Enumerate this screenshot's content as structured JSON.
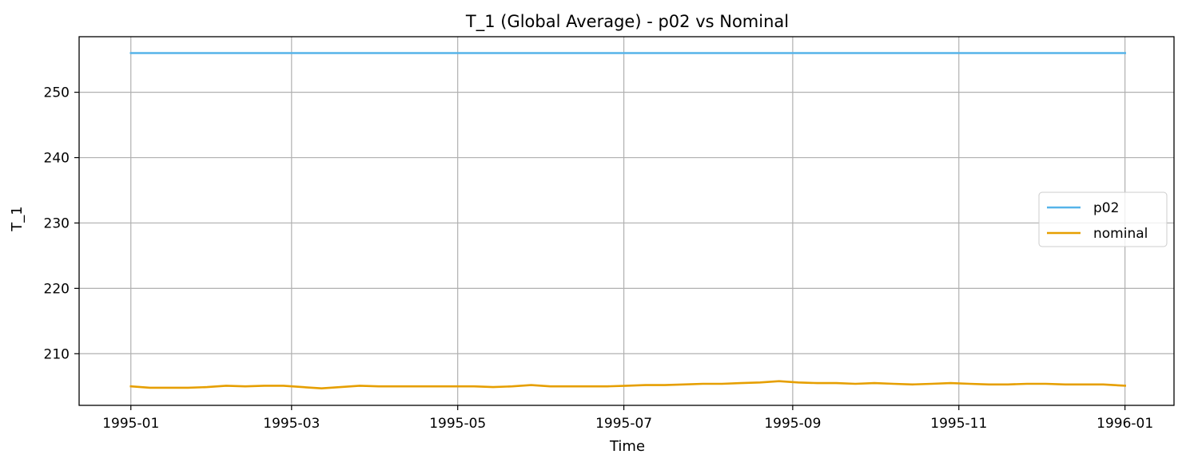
{
  "chart_data": {
    "type": "line",
    "title": "T_1 (Global Average) - p02 vs Nominal",
    "xlabel": "Time",
    "ylabel": "T_1",
    "grid": true,
    "legend_position": "center-right",
    "xlim": [
      "1994-12-13",
      "1996-01-19"
    ],
    "ylim": [
      202.1,
      258.5
    ],
    "x_ticks": [
      "1995-01-01",
      "1995-03-01",
      "1995-05-01",
      "1995-07-01",
      "1995-09-01",
      "1995-11-01",
      "1996-01-01"
    ],
    "x_tick_labels": [
      "1995-01",
      "1995-03",
      "1995-05",
      "1995-07",
      "1995-09",
      "1995-11",
      "1996-01"
    ],
    "y_ticks": [
      210,
      220,
      230,
      240,
      250
    ],
    "y_tick_labels": [
      "210",
      "220",
      "230",
      "240",
      "250"
    ],
    "series": [
      {
        "name": "p02",
        "color": "#56b4e9",
        "x": [
          "1995-01-01",
          "1996-01-01"
        ],
        "y": [
          256.0,
          256.0
        ]
      },
      {
        "name": "nominal",
        "color": "#e69f00",
        "x": [
          "1995-01-01",
          "1995-01-08",
          "1995-01-15",
          "1995-01-22",
          "1995-01-29",
          "1995-02-05",
          "1995-02-12",
          "1995-02-19",
          "1995-02-26",
          "1995-03-05",
          "1995-03-12",
          "1995-03-19",
          "1995-03-26",
          "1995-04-02",
          "1995-04-09",
          "1995-04-16",
          "1995-04-23",
          "1995-04-30",
          "1995-05-07",
          "1995-05-14",
          "1995-05-21",
          "1995-05-28",
          "1995-06-04",
          "1995-06-11",
          "1995-06-18",
          "1995-06-25",
          "1995-07-02",
          "1995-07-09",
          "1995-07-16",
          "1995-07-23",
          "1995-07-30",
          "1995-08-06",
          "1995-08-13",
          "1995-08-20",
          "1995-08-27",
          "1995-09-03",
          "1995-09-10",
          "1995-09-17",
          "1995-09-24",
          "1995-10-01",
          "1995-10-08",
          "1995-10-15",
          "1995-10-22",
          "1995-10-29",
          "1995-11-05",
          "1995-11-12",
          "1995-11-19",
          "1995-11-26",
          "1995-12-03",
          "1995-12-10",
          "1995-12-17",
          "1995-12-24",
          "1996-01-01"
        ],
        "y": [
          205.0,
          204.8,
          204.8,
          204.8,
          204.9,
          205.1,
          205.0,
          205.1,
          205.1,
          204.9,
          204.7,
          204.9,
          205.1,
          205.0,
          205.0,
          205.0,
          205.0,
          205.0,
          205.0,
          204.9,
          205.0,
          205.2,
          205.0,
          205.0,
          205.0,
          205.0,
          205.1,
          205.2,
          205.2,
          205.3,
          205.4,
          205.4,
          205.5,
          205.6,
          205.8,
          205.6,
          205.5,
          205.5,
          205.4,
          205.5,
          205.4,
          205.3,
          205.4,
          205.5,
          205.4,
          205.3,
          205.3,
          205.4,
          205.4,
          205.3,
          205.3,
          205.3,
          205.1
        ]
      }
    ]
  }
}
